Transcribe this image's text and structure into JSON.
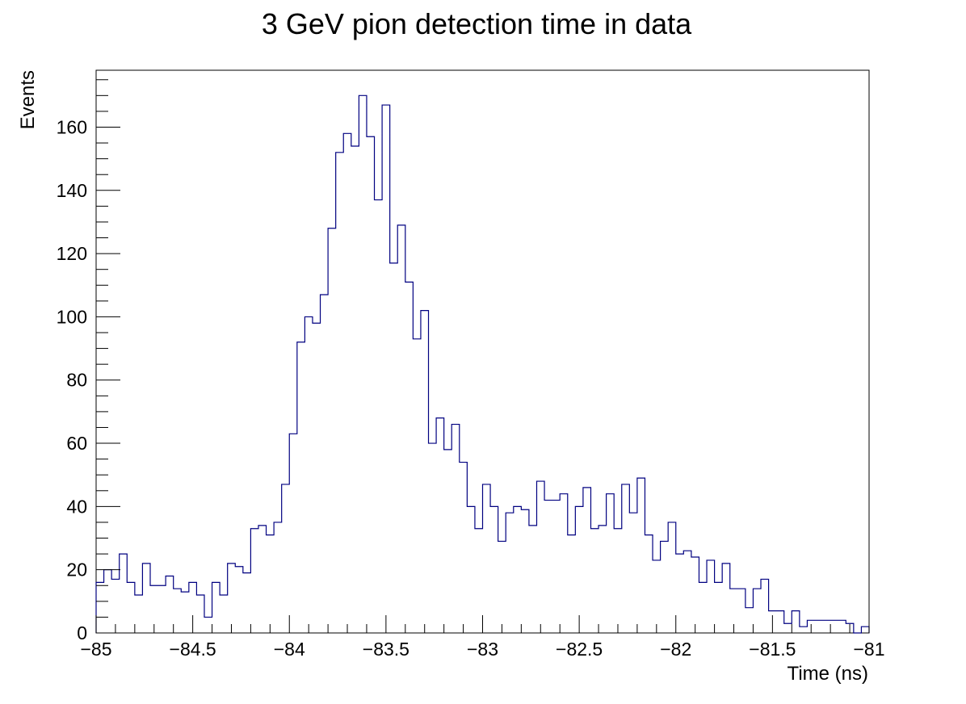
{
  "chart_data": {
    "type": "bar",
    "title": "3 GeV pion detection time in data",
    "xlabel": "Time (ns)",
    "ylabel": "Events",
    "xlim": [
      -85,
      -81
    ],
    "ylim": [
      0,
      178
    ],
    "grid": false,
    "bin_width": 0.04,
    "x_ticks": [
      -85,
      -84.5,
      -84,
      -83.5,
      -83,
      -82.5,
      -82,
      -81.5,
      -81
    ],
    "x_tick_labels": [
      "−85",
      "−84.5",
      "−84",
      "−83.5",
      "−83",
      "−82.5",
      "−82",
      "−81.5",
      "−81"
    ],
    "y_ticks": [
      0,
      20,
      40,
      60,
      80,
      100,
      120,
      140,
      160
    ],
    "y_tick_labels": [
      "0",
      "20",
      "40",
      "60",
      "80",
      "100",
      "120",
      "140",
      "160"
    ],
    "series": [
      {
        "color": "#000080",
        "x": [
          -85.0,
          -84.96,
          -84.92,
          -84.88,
          -84.84,
          -84.8,
          -84.76,
          -84.72,
          -84.68,
          -84.64,
          -84.6,
          -84.56,
          -84.52,
          -84.48,
          -84.44,
          -84.4,
          -84.36,
          -84.32,
          -84.28,
          -84.24,
          -84.2,
          -84.16,
          -84.12,
          -84.08,
          -84.04,
          -84.0,
          -83.96,
          -83.92,
          -83.88,
          -83.84,
          -83.8,
          -83.76,
          -83.72,
          -83.68,
          -83.64,
          -83.6,
          -83.56,
          -83.52,
          -83.48,
          -83.44,
          -83.4,
          -83.36,
          -83.32,
          -83.28,
          -83.24,
          -83.2,
          -83.16,
          -83.12,
          -83.08,
          -83.04,
          -83.0,
          -82.96,
          -82.92,
          -82.88,
          -82.84,
          -82.8,
          -82.76,
          -82.72,
          -82.68,
          -82.64,
          -82.6,
          -82.56,
          -82.52,
          -82.48,
          -82.44,
          -82.4,
          -82.36,
          -82.32,
          -82.28,
          -82.24,
          -82.2,
          -82.16,
          -82.12,
          -82.08,
          -82.04,
          -82.0,
          -81.96,
          -81.92,
          -81.88,
          -81.84,
          -81.8,
          -81.76,
          -81.72,
          -81.68,
          -81.64,
          -81.6,
          -81.56,
          -81.52,
          -81.48,
          -81.44,
          -81.4,
          -81.36,
          -81.32,
          -81.28,
          -81.24,
          -81.2,
          -81.16,
          -81.12,
          -81.08,
          -81.04
        ],
        "values": [
          16,
          20,
          17,
          25,
          16,
          12,
          22,
          15,
          15,
          18,
          14,
          13,
          16,
          12,
          5,
          16,
          12,
          22,
          21,
          19,
          33,
          34,
          31,
          35,
          47,
          63,
          92,
          100,
          98,
          107,
          128,
          152,
          158,
          154,
          170,
          157,
          137,
          167,
          117,
          129,
          111,
          93,
          102,
          60,
          68,
          58,
          66,
          54,
          40,
          33,
          47,
          40,
          29,
          38,
          40,
          39,
          34,
          48,
          42,
          42,
          44,
          31,
          40,
          46,
          33,
          34,
          44,
          33,
          47,
          38,
          49,
          31,
          23,
          29,
          35,
          25,
          26,
          24,
          16,
          23,
          16,
          22,
          14,
          14,
          8,
          14,
          17,
          7,
          7,
          3,
          7,
          2,
          4,
          4,
          4,
          4,
          4,
          3,
          0,
          2
        ]
      }
    ]
  }
}
